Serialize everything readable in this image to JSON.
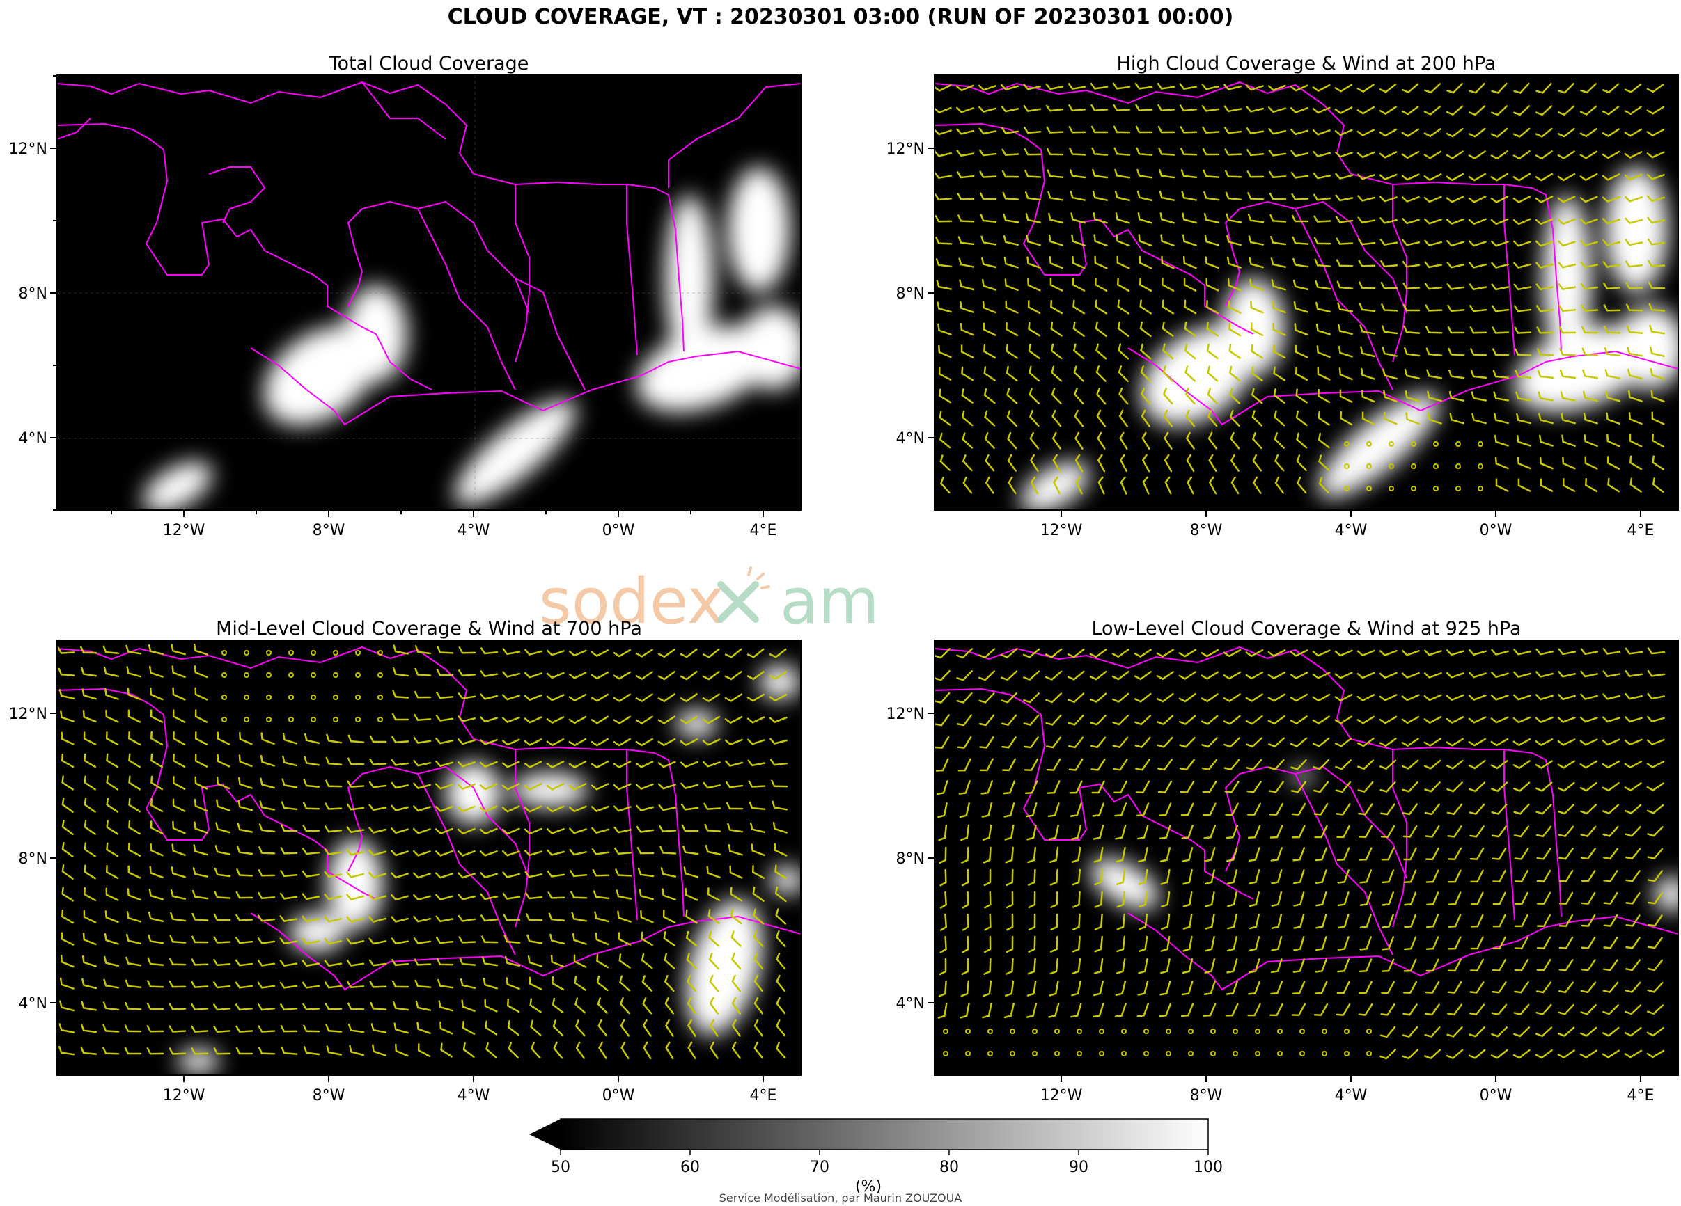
{
  "figure": {
    "title": "CLOUD COVERAGE, VT : 20230301 03:00 (RUN OF 20230301 00:00)",
    "credit": "Service Modélisation, par Maurin ZOUZOUA",
    "watermark": {
      "left": "sodex",
      "right": "am"
    }
  },
  "colors": {
    "background": "#000000",
    "borders": "#ff00ff",
    "wind_barbs": "#c8c800",
    "cloud": "#ffffff",
    "watermark_left": "#f3c9a7",
    "watermark_right": "#b6dcc6"
  },
  "map_axes": {
    "x_ticks": [
      "12°W",
      "8°W",
      "4°W",
      "0°W",
      "4°E"
    ],
    "y_ticks": [
      "12°N",
      "8°N",
      "4°N"
    ]
  },
  "panels": [
    {
      "id": "total",
      "title": "Total Cloud Coverage",
      "wind": false
    },
    {
      "id": "high",
      "title": "High Cloud Coverage & Wind at 200 hPa",
      "wind": true
    },
    {
      "id": "mid",
      "title": "Mid-Level Cloud Coverage & Wind at 700 hPa",
      "wind": true
    },
    {
      "id": "low",
      "title": "Low-Level Cloud Coverage & Wind at 925 hPa",
      "wind": true
    }
  ],
  "colorbar": {
    "label": "(%)",
    "ticks": [
      "50",
      "60",
      "70",
      "80",
      "90",
      "100"
    ],
    "range": [
      50,
      100
    ],
    "extend": "min",
    "colormap": "greys (black to white)"
  }
}
